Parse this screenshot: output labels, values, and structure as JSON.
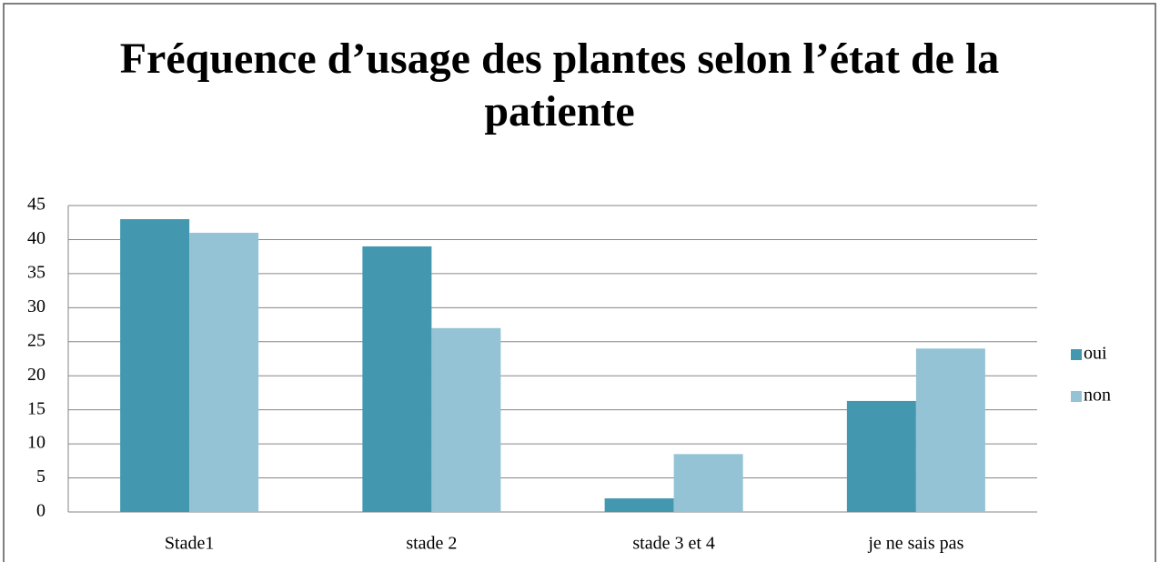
{
  "chart_data": {
    "type": "bar",
    "title": "Fréquence d’usage des plantes selon l’état de la patiente",
    "categories": [
      "Stade1",
      "stade 2",
      "stade 3 et 4",
      "je ne sais pas"
    ],
    "series": [
      {
        "name": "oui",
        "color": "#4398b0",
        "values": [
          43,
          39,
          2,
          16.3
        ]
      },
      {
        "name": "non",
        "color": "#93c3d4",
        "values": [
          41,
          27,
          8.5,
          24
        ]
      }
    ],
    "ylim": [
      0,
      45
    ],
    "yticks": [
      0,
      5,
      10,
      15,
      20,
      25,
      30,
      35,
      40,
      45
    ],
    "grid": true,
    "legend": "right"
  }
}
